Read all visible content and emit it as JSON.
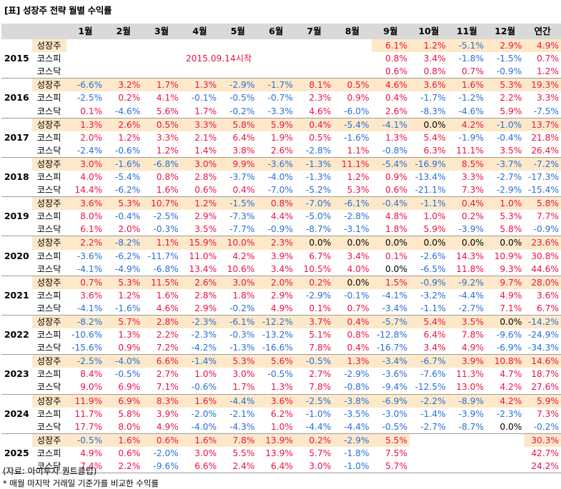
{
  "title": "[표] 성장주 전략 월별 수익률",
  "headers": [
    "",
    "",
    "1월",
    "2월",
    "3월",
    "4월",
    "5월",
    "6월",
    "7월",
    "8월",
    "9월",
    "10월",
    "11월",
    "12월",
    "연간"
  ],
  "row_labels": [
    "성장주",
    "코스피",
    "코스닥"
  ],
  "note_2015": "2015.09.14시작",
  "years": [
    {
      "year": "2015",
      "rows": [
        [
          "",
          "",
          "",
          "",
          "",
          "",
          "",
          "",
          "6.1%",
          "1.2%",
          "-5.1%",
          "2.9%",
          "4.9%"
        ],
        [
          "",
          "",
          "",
          "",
          "",
          "",
          "",
          "",
          "0.8%",
          "3.4%",
          "-1.8%",
          "-1.5%",
          "0.7%"
        ],
        [
          "",
          "",
          "",
          "",
          "",
          "",
          "",
          "",
          "0.6%",
          "0.8%",
          "0.7%",
          "-0.9%",
          "1.2%"
        ]
      ]
    },
    {
      "year": "2016",
      "rows": [
        [
          "-6.6%",
          "3.2%",
          "1.7%",
          "1.3%",
          "-2.9%",
          "-1.7%",
          "8.1%",
          "0.5%",
          "4.6%",
          "3.6%",
          "1.6%",
          "5.3%",
          "19.3%"
        ],
        [
          "-2.5%",
          "0.2%",
          "4.1%",
          "-0.1%",
          "-0.5%",
          "-0.7%",
          "2.3%",
          "0.9%",
          "0.4%",
          "-1.7%",
          "-1.2%",
          "2.2%",
          "3.3%"
        ],
        [
          "0.1%",
          "-4.6%",
          "5.6%",
          "1.7%",
          "-0.2%",
          "-3.3%",
          "4.6%",
          "-6.0%",
          "2.6%",
          "-8.3%",
          "-4.6%",
          "5.9%",
          "-7.5%"
        ]
      ]
    },
    {
      "year": "2017",
      "rows": [
        [
          "1.3%",
          "2.6%",
          "0.5%",
          "3.3%",
          "5.8%",
          "5.9%",
          "0.4%",
          "-5.4%",
          "-4.1%",
          "0.0%",
          "4.2%",
          "-1.0%",
          "13.7%"
        ],
        [
          "2.0%",
          "1.2%",
          "3.3%",
          "2.1%",
          "6.4%",
          "1.9%",
          "0.5%",
          "-1.6%",
          "1.3%",
          "5.4%",
          "-1.9%",
          "-0.4%",
          "21.8%"
        ],
        [
          "-2.4%",
          "-0.6%",
          "1.2%",
          "1.4%",
          "3.8%",
          "2.6%",
          "-2.8%",
          "1.1%",
          "-0.8%",
          "6.3%",
          "11.1%",
          "3.5%",
          "26.4%"
        ]
      ]
    },
    {
      "year": "2018",
      "rows": [
        [
          "3.0%",
          "-1.6%",
          "-6.8%",
          "3.0%",
          "9.9%",
          "-3.6%",
          "-1.3%",
          "11.1%",
          "-5.4%",
          "-16.9%",
          "8.5%",
          "-3.7%",
          "-7.2%"
        ],
        [
          "4.0%",
          "-5.4%",
          "0.8%",
          "2.8%",
          "-3.7%",
          "-4.0%",
          "-1.3%",
          "1.2%",
          "0.9%",
          "-13.4%",
          "3.3%",
          "-2.7%",
          "-17.3%"
        ],
        [
          "14.4%",
          "-6.2%",
          "1.6%",
          "0.6%",
          "0.4%",
          "-7.0%",
          "-5.2%",
          "5.3%",
          "0.6%",
          "-21.1%",
          "7.3%",
          "-2.9%",
          "-15.4%"
        ]
      ]
    },
    {
      "year": "2019",
      "rows": [
        [
          "3.6%",
          "5.3%",
          "10.7%",
          "1.2%",
          "-1.5%",
          "0.8%",
          "-7.0%",
          "-6.1%",
          "-0.4%",
          "-1.1%",
          "0.4%",
          "1.0%",
          "5.8%"
        ],
        [
          "8.0%",
          "-0.4%",
          "-2.5%",
          "2.9%",
          "-7.3%",
          "4.4%",
          "-5.0%",
          "-2.8%",
          "4.8%",
          "1.0%",
          "0.2%",
          "5.3%",
          "7.7%"
        ],
        [
          "6.1%",
          "2.0%",
          "-0.3%",
          "3.5%",
          "-7.7%",
          "-0.9%",
          "-8.7%",
          "-3.1%",
          "1.8%",
          "5.9%",
          "-3.9%",
          "5.8%",
          "-0.9%"
        ]
      ]
    },
    {
      "year": "2020",
      "rows": [
        [
          "2.2%",
          "-8.2%",
          "1.1%",
          "15.9%",
          "10.0%",
          "2.3%",
          "0.0%",
          "0.0%",
          "0.0%",
          "0.0%",
          "0.0%",
          "0.0%",
          "23.6%"
        ],
        [
          "-3.6%",
          "-6.2%",
          "-11.7%",
          "11.0%",
          "4.2%",
          "3.9%",
          "6.7%",
          "3.4%",
          "0.1%",
          "-2.6%",
          "14.3%",
          "10.9%",
          "30.8%"
        ],
        [
          "-4.1%",
          "-4.9%",
          "-6.8%",
          "13.4%",
          "10.6%",
          "3.4%",
          "10.5%",
          "4.0%",
          "0.0%",
          "-6.5%",
          "11.8%",
          "9.3%",
          "44.6%"
        ]
      ]
    },
    {
      "year": "2021",
      "rows": [
        [
          "0.7%",
          "5.3%",
          "11.5%",
          "2.6%",
          "3.0%",
          "2.0%",
          "0.2%",
          "0.0%",
          "1.5%",
          "-0.9%",
          "-9.2%",
          "9.7%",
          "28.0%"
        ],
        [
          "3.6%",
          "1.2%",
          "1.6%",
          "2.8%",
          "1.8%",
          "2.9%",
          "-2.9%",
          "-0.1%",
          "-4.1%",
          "-3.2%",
          "-4.4%",
          "4.9%",
          "3.6%"
        ],
        [
          "-4.1%",
          "-1.6%",
          "4.6%",
          "2.9%",
          "-0.2%",
          "4.9%",
          "0.1%",
          "0.7%",
          "-3.4%",
          "-1.1%",
          "-2.7%",
          "7.1%",
          "6.7%"
        ]
      ]
    },
    {
      "year": "2022",
      "rows": [
        [
          "-8.2%",
          "5.7%",
          "2.8%",
          "-2.3%",
          "-6.1%",
          "-12.2%",
          "3.7%",
          "0.4%",
          "-5.7%",
          "5.4%",
          "3.5%",
          "0.0%",
          "-14.2%"
        ],
        [
          "-10.6%",
          "1.3%",
          "2.2%",
          "-2.3%",
          "-0.3%",
          "-13.2%",
          "5.1%",
          "0.8%",
          "-12.8%",
          "6.4%",
          "7.8%",
          "-9.6%",
          "-24.9%"
        ],
        [
          "-15.6%",
          "0.9%",
          "7.2%",
          "-4.2%",
          "-1.3%",
          "-16.6%",
          "7.8%",
          "0.4%",
          "-16.7%",
          "3.4%",
          "4.9%",
          "-6.9%",
          "-34.3%"
        ]
      ]
    },
    {
      "year": "2023",
      "rows": [
        [
          "-2.5%",
          "-4.0%",
          "6.6%",
          "-1.4%",
          "5.3%",
          "5.6%",
          "-0.5%",
          "1.3%",
          "-3.4%",
          "-6.7%",
          "3.9%",
          "10.8%",
          "14.6%"
        ],
        [
          "8.4%",
          "-0.5%",
          "2.7%",
          "1.0%",
          "3.0%",
          "-0.5%",
          "2.7%",
          "-2.9%",
          "-3.6%",
          "-7.6%",
          "11.3%",
          "4.7%",
          "18.7%"
        ],
        [
          "9.0%",
          "6.9%",
          "7.1%",
          "-0.6%",
          "1.7%",
          "1.3%",
          "7.8%",
          "-0.8%",
          "-9.4%",
          "-12.5%",
          "13.0%",
          "4.2%",
          "27.6%"
        ]
      ]
    },
    {
      "year": "2024",
      "rows": [
        [
          "11.9%",
          "6.9%",
          "8.3%",
          "1.6%",
          "-4.4%",
          "3.6%",
          "-2.5%",
          "-3.8%",
          "-6.9%",
          "-2.2%",
          "-8.9%",
          "4.2%",
          "5.9%"
        ],
        [
          "11.7%",
          "5.8%",
          "3.9%",
          "-2.0%",
          "-2.1%",
          "6.2%",
          "-1.0%",
          "-3.5%",
          "-3.0%",
          "-1.4%",
          "-3.9%",
          "-2.3%",
          "7.3%"
        ],
        [
          "17.7%",
          "8.0%",
          "4.9%",
          "-4.0%",
          "-4.3%",
          "1.0%",
          "-4.4%",
          "-4.4%",
          "-0.5%",
          "-2.7%",
          "-8.7%",
          "0.0%",
          "-0.2%"
        ]
      ]
    },
    {
      "year": "2025",
      "rows": [
        [
          "-0.5%",
          "1.6%",
          "0.6%",
          "1.6%",
          "7.8%",
          "13.9%",
          "0.2%",
          "-2.9%",
          "5.5%",
          "",
          "",
          "",
          "30.3%"
        ],
        [
          "4.9%",
          "0.6%",
          "-2.0%",
          "3.0%",
          "5.5%",
          "13.9%",
          "5.7%",
          "-1.8%",
          "7.5%",
          "",
          "",
          "",
          "42.7%"
        ],
        [
          "7.4%",
          "2.2%",
          "-9.6%",
          "6.6%",
          "2.4%",
          "6.4%",
          "3.0%",
          "-1.0%",
          "5.7%",
          "",
          "",
          "",
          "24.2%"
        ]
      ]
    }
  ],
  "source": "(자료: 아이투자 퀀트클럽)",
  "footnote": "* 매월 마지막 거래일 기준가를 비교한 수익률",
  "colors": {
    "positive": "#ee1144",
    "negative": "#2a6fd6",
    "growth_row_bg": "#fde9c9",
    "header_bg": "#d9d9d9"
  }
}
